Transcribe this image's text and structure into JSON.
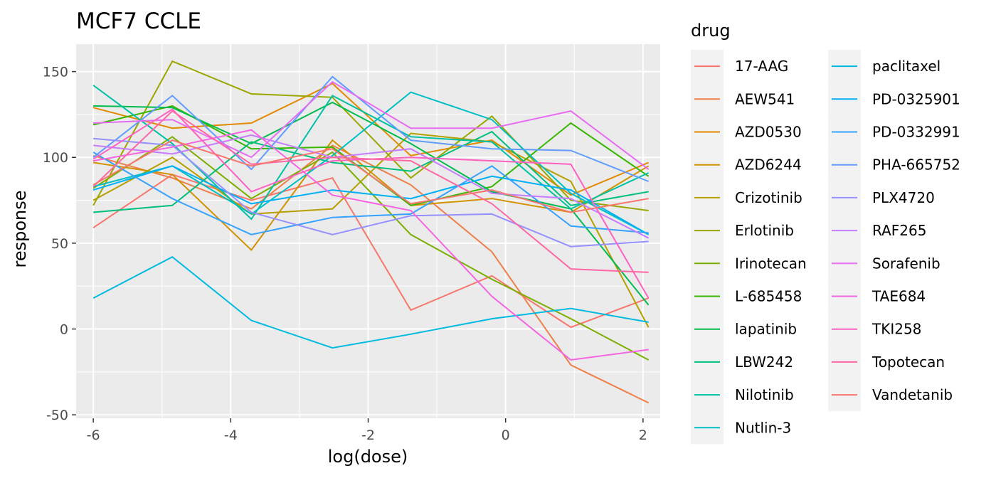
{
  "chart_data": {
    "type": "line",
    "title": "MCF7 CCLE",
    "xlabel": "log(dose)",
    "ylabel": "response",
    "xlim": [
      -6.25,
      2.25
    ],
    "ylim": [
      -52,
      166
    ],
    "x_ticks": [
      -6,
      -4,
      -2,
      0,
      2
    ],
    "y_ticks": [
      -50,
      0,
      50,
      100,
      150
    ],
    "x_tick_labels": [
      "-6",
      "-4",
      "-2",
      "0",
      "2"
    ],
    "y_tick_labels": [
      "-50",
      "0",
      "50",
      "100",
      "150"
    ],
    "grid": true,
    "legend_title": "drug",
    "legend_position": "right",
    "series": [
      {
        "name": "17-AAG",
        "color": "#F8766D",
        "x": [
          -6,
          -4.85,
          -3.7,
          -2.52,
          -1.38,
          -0.2,
          0.95,
          2.08
        ],
        "y": [
          59,
          90,
          75,
          88,
          11,
          31,
          1,
          18
        ]
      },
      {
        "name": "AEW541",
        "color": "#EF7F49",
        "x": [
          -6,
          -4.85,
          -3.7,
          -2.52,
          -1.38,
          -0.2,
          0.95,
          2.08
        ],
        "y": [
          101,
          88,
          70,
          107,
          84,
          45,
          -21,
          -43
        ]
      },
      {
        "name": "AZD0530",
        "color": "#E38900",
        "x": [
          -6,
          -4.85,
          -3.7,
          -2.52,
          -1.38,
          -0.2,
          0.95,
          2.08
        ],
        "y": [
          129,
          117,
          120,
          143,
          101,
          110,
          78,
          97
        ]
      },
      {
        "name": "AZD6244",
        "color": "#D39200",
        "x": [
          -6,
          -4.85,
          -3.7,
          -2.52,
          -1.38,
          -0.2,
          0.95,
          2.08
        ],
        "y": [
          97,
          90,
          46,
          110,
          72,
          76,
          68,
          95
        ]
      },
      {
        "name": "Crizotinib",
        "color": "#B79F00",
        "x": [
          -6,
          -4.85,
          -3.7,
          -2.52,
          -1.38,
          -0.2,
          0.95,
          2.08
        ],
        "y": [
          75,
          100,
          67,
          70,
          114,
          109,
          86,
          1
        ]
      },
      {
        "name": "Erlotinib",
        "color": "#9AA600",
        "x": [
          -6,
          -4.85,
          -3.7,
          -2.52,
          -1.38,
          -0.2,
          0.95,
          2.08
        ],
        "y": [
          72,
          156,
          137,
          135,
          88,
          124,
          75,
          69
        ]
      },
      {
        "name": "Irinotecan",
        "color": "#7CAE00",
        "x": [
          -6,
          -4.85,
          -3.7,
          -2.52,
          -1.38,
          -0.2,
          0.95,
          2.08
        ],
        "y": [
          82,
          112,
          76,
          103,
          55,
          29,
          6,
          -18
        ]
      },
      {
        "name": "L-685458",
        "color": "#39B600",
        "x": [
          -6,
          -4.85,
          -3.7,
          -2.52,
          -1.38,
          -0.2,
          0.95,
          2.08
        ],
        "y": [
          119,
          130,
          105,
          106,
          72,
          83,
          120,
          89
        ]
      },
      {
        "name": "lapatinib",
        "color": "#00BB4E",
        "x": [
          -6,
          -4.85,
          -3.7,
          -2.52,
          -1.38,
          -0.2,
          0.95,
          2.08
        ],
        "y": [
          130,
          129,
          108,
          132,
          108,
          80,
          70,
          14
        ]
      },
      {
        "name": "LBW242",
        "color": "#00BF7D",
        "x": [
          -6,
          -4.85,
          -3.7,
          -2.52,
          -1.38,
          -0.2,
          0.95,
          2.08
        ],
        "y": [
          68,
          72,
          109,
          97,
          92,
          115,
          72,
          80
        ]
      },
      {
        "name": "Nilotinib",
        "color": "#00C1A3",
        "x": [
          -6,
          -4.85,
          -3.7,
          -2.52,
          -1.38,
          -0.2,
          0.95,
          2.08
        ],
        "y": [
          142,
          108,
          64,
          136,
          112,
          109,
          70,
          91
        ]
      },
      {
        "name": "Nutlin-3",
        "color": "#00BFC4",
        "x": [
          -6,
          -4.85,
          -3.7,
          -2.52,
          -1.38,
          -0.2,
          0.95,
          2.08
        ],
        "y": [
          83,
          95,
          67,
          101,
          138,
          122,
          79,
          55
        ]
      },
      {
        "name": "paclitaxel",
        "color": "#00BAE0",
        "x": [
          -6,
          -4.85,
          -3.7,
          -2.52,
          -1.38,
          -0.2,
          0.95,
          2.08
        ],
        "y": [
          18,
          42,
          5,
          -11,
          -3,
          6,
          12,
          4
        ]
      },
      {
        "name": "PD-0325901",
        "color": "#00B0F6",
        "x": [
          -6,
          -4.85,
          -3.7,
          -2.52,
          -1.38,
          -0.2,
          0.95,
          2.08
        ],
        "y": [
          81,
          95,
          73,
          81,
          76,
          89,
          81,
          55
        ]
      },
      {
        "name": "PD-0332991",
        "color": "#35A2FF",
        "x": [
          -6,
          -4.85,
          -3.7,
          -2.52,
          -1.38,
          -0.2,
          0.95,
          2.08
        ],
        "y": [
          103,
          76,
          55,
          65,
          67,
          95,
          60,
          56
        ]
      },
      {
        "name": "PHA-665752",
        "color": "#619CFF",
        "x": [
          -6,
          -4.85,
          -3.7,
          -2.52,
          -1.38,
          -0.2,
          0.95,
          2.08
        ],
        "y": [
          100,
          136,
          93,
          147,
          110,
          105,
          104,
          86
        ]
      },
      {
        "name": "PLX4720",
        "color": "#9590FF",
        "x": [
          -6,
          -4.85,
          -3.7,
          -2.52,
          -1.38,
          -0.2,
          0.95,
          2.08
        ],
        "y": [
          111,
          107,
          68,
          55,
          66,
          67,
          48,
          51
        ]
      },
      {
        "name": "RAF265",
        "color": "#C77CFF",
        "x": [
          -6,
          -4.85,
          -3.7,
          -2.52,
          -1.38,
          -0.2,
          0.95,
          2.08
        ],
        "y": [
          107,
          102,
          113,
          100,
          105,
          79,
          76,
          53
        ]
      },
      {
        "name": "Sorafenib",
        "color": "#E76BF3",
        "x": [
          -6,
          -4.85,
          -3.7,
          -2.52,
          -1.38,
          -0.2,
          0.95,
          2.08
        ],
        "y": [
          120,
          122,
          100,
          144,
          117,
          117,
          127,
          93
        ]
      },
      {
        "name": "TAE684",
        "color": "#F564E3",
        "x": [
          -6,
          -4.85,
          -3.7,
          -2.52,
          -1.38,
          -0.2,
          0.95,
          2.08
        ],
        "y": [
          98,
          106,
          116,
          78,
          69,
          19,
          -18,
          -12
        ]
      },
      {
        "name": "TKI258",
        "color": "#FF61C3",
        "x": [
          -6,
          -4.85,
          -3.7,
          -2.52,
          -1.38,
          -0.2,
          0.95,
          2.08
        ],
        "y": [
          99,
          128,
          80,
          98,
          100,
          98,
          96,
          18
        ]
      },
      {
        "name": "Topotecan",
        "color": "#FF67A4",
        "x": [
          -6,
          -4.85,
          -3.7,
          -2.52,
          -1.38,
          -0.2,
          0.95,
          2.08
        ],
        "y": [
          83,
          127,
          96,
          100,
          98,
          73,
          35,
          33
        ]
      },
      {
        "name": "Vandetanib",
        "color": "#F8766D",
        "x": [
          -6,
          -4.85,
          -3.7,
          -2.52,
          -1.38,
          -0.2,
          0.95,
          2.08
        ],
        "y": [
          84,
          110,
          95,
          105,
          73,
          81,
          68,
          76
        ]
      }
    ]
  }
}
